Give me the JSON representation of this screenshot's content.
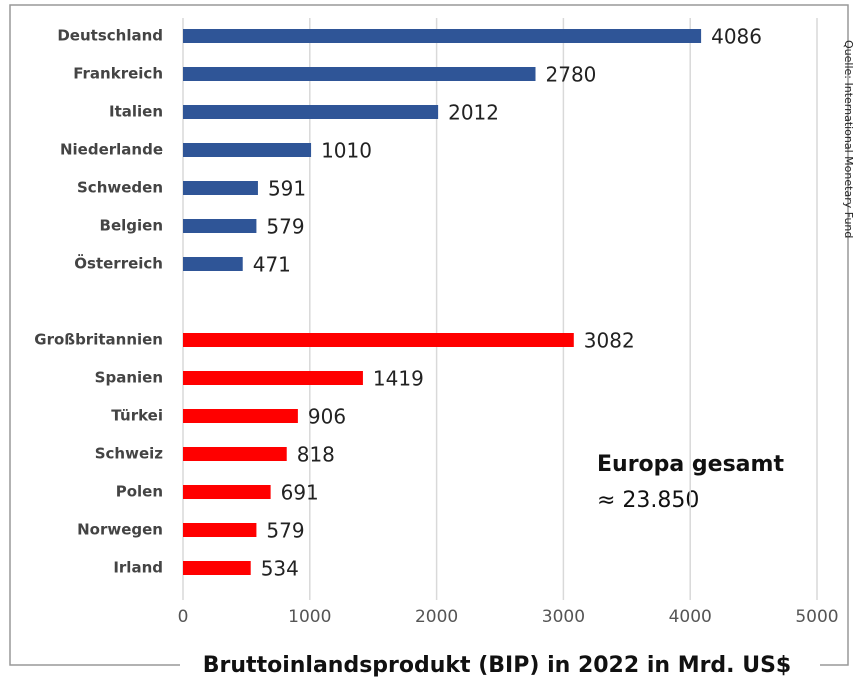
{
  "chart_data": {
    "type": "bar",
    "orientation": "horizontal",
    "title": "Bruttoinlandsprodukt (BIP) in 2022 in Mrd. US$",
    "source": "Quelle: International Monetary Fund",
    "annotations": [
      "Europa gesamt",
      "≈ 23.850"
    ],
    "categories": [
      "Deutschland",
      "Frankreich",
      "Italien",
      "Niederlande",
      "Schweden",
      "Belgien",
      "Österreich",
      null,
      "Großbritannien",
      "Spanien",
      "Türkei",
      "Schweiz",
      "Polen",
      "Norwegen",
      "Irland"
    ],
    "values": [
      4086,
      2780,
      2012,
      1010,
      591,
      579,
      471,
      null,
      3082,
      1419,
      906,
      818,
      691,
      579,
      534
    ],
    "colors": [
      "#2f5597",
      "#2f5597",
      "#2f5597",
      "#2f5597",
      "#2f5597",
      "#2f5597",
      "#2f5597",
      null,
      "#ff0000",
      "#ff0000",
      "#ff0000",
      "#ff0000",
      "#ff0000",
      "#ff0000",
      "#ff0000"
    ],
    "xlim": [
      0,
      5000
    ],
    "xticks": [
      0,
      1000,
      2000,
      3000,
      4000,
      5000
    ],
    "grid": true
  }
}
